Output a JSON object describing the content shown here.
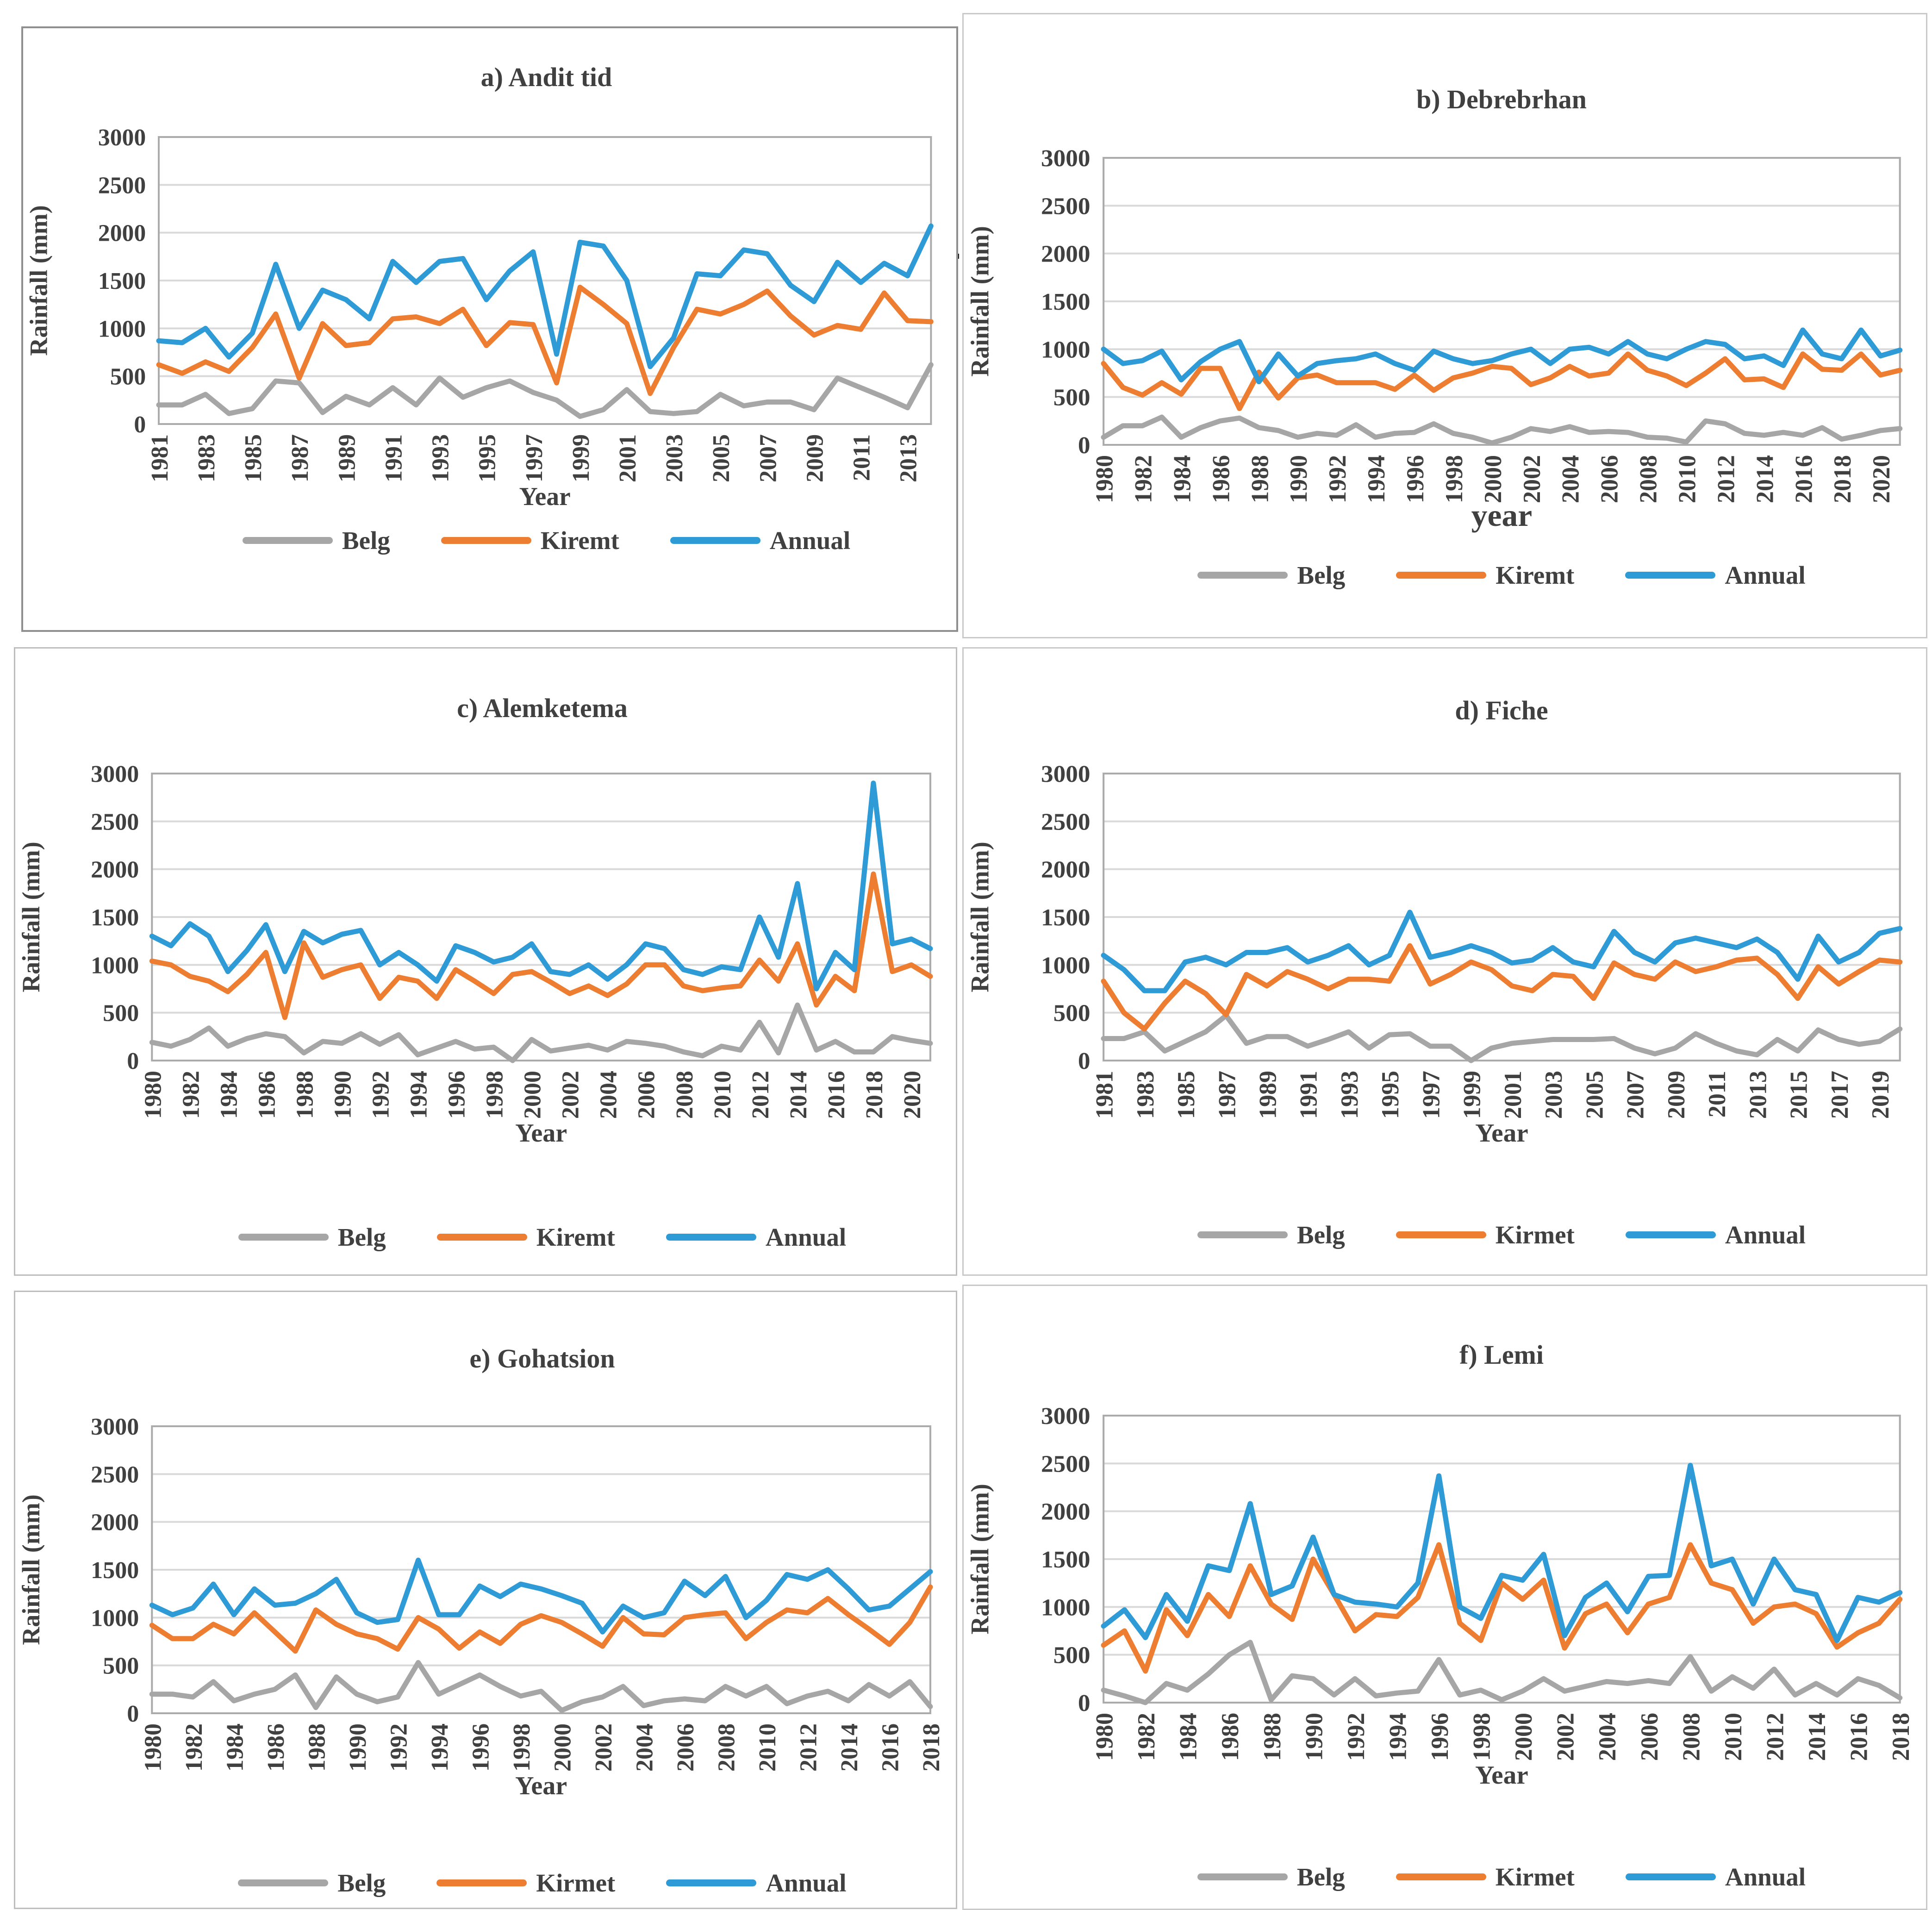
{
  "figure": {
    "background": "#ffffff",
    "stray_mark": "-",
    "text_color": "#404040",
    "gridline_color": "#d9d9d9",
    "plot_border_color": "#ababab"
  },
  "chart_data": [
    {
      "id": "a",
      "type": "line",
      "title": "a) Andit tid",
      "ylabel": "Rainfall (mm)",
      "xlabel": "Year",
      "xlabel_size": 56,
      "y_axis": {
        "min": 0,
        "max": 3000,
        "step": 500
      },
      "grid": true,
      "legend_position": "bottom",
      "years": [
        1981,
        1982,
        1983,
        1984,
        1985,
        1986,
        1987,
        1988,
        1989,
        1990,
        1991,
        1992,
        1993,
        1994,
        1995,
        1996,
        1997,
        1998,
        1999,
        2000,
        2001,
        2002,
        2003,
        2004,
        2005,
        2006,
        2007,
        2008,
        2009,
        2010,
        2011,
        2012,
        2013,
        2014
      ],
      "series": [
        {
          "name": "Belg",
          "color": "#a6a6a6",
          "values": [
            200,
            200,
            310,
            110,
            160,
            450,
            430,
            120,
            290,
            200,
            380,
            200,
            480,
            280,
            380,
            450,
            330,
            250,
            80,
            150,
            360,
            130,
            110,
            130,
            310,
            190,
            230,
            230,
            150,
            480,
            380,
            280,
            170,
            620
          ]
        },
        {
          "name": "Kiremt",
          "color": "#ed7d31",
          "values": [
            620,
            530,
            650,
            550,
            800,
            1150,
            480,
            1050,
            820,
            850,
            1100,
            1120,
            1050,
            1200,
            820,
            1060,
            1040,
            430,
            1430,
            1250,
            1050,
            320,
            800,
            1200,
            1150,
            1250,
            1390,
            1130,
            930,
            1030,
            990,
            1370,
            1080,
            1070
          ]
        },
        {
          "name": "Annual",
          "color": "#2e9bd6",
          "values": [
            870,
            850,
            1000,
            700,
            950,
            1670,
            1000,
            1400,
            1300,
            1100,
            1700,
            1480,
            1700,
            1730,
            1300,
            1600,
            1800,
            730,
            1900,
            1860,
            1500,
            600,
            900,
            1570,
            1550,
            1820,
            1780,
            1450,
            1280,
            1690,
            1480,
            1680,
            1550,
            2070
          ]
        }
      ]
    },
    {
      "id": "b",
      "type": "line",
      "title": "b) Debrebrhan",
      "ylabel": "Rainfall (mm)",
      "xlabel": "year",
      "xlabel_size": 68,
      "y_axis": {
        "min": 0,
        "max": 3000,
        "step": 500
      },
      "grid": true,
      "legend_position": "bottom",
      "years": [
        1980,
        1981,
        1982,
        1983,
        1984,
        1985,
        1986,
        1987,
        1988,
        1989,
        1990,
        1991,
        1992,
        1993,
        1994,
        1995,
        1996,
        1997,
        1998,
        1999,
        2000,
        2001,
        2002,
        2003,
        2004,
        2005,
        2006,
        2007,
        2008,
        2009,
        2010,
        2011,
        2012,
        2013,
        2014,
        2015,
        2016,
        2017,
        2018,
        2019,
        2020,
        2021
      ],
      "series": [
        {
          "name": "Belg",
          "color": "#a6a6a6",
          "values": [
            80,
            200,
            200,
            290,
            80,
            180,
            250,
            280,
            180,
            150,
            80,
            120,
            100,
            210,
            80,
            120,
            130,
            220,
            120,
            80,
            20,
            80,
            170,
            140,
            190,
            130,
            140,
            130,
            80,
            70,
            30,
            250,
            220,
            120,
            100,
            130,
            100,
            180,
            60,
            100,
            150,
            170
          ]
        },
        {
          "name": "Kiremt",
          "color": "#ed7d31",
          "values": [
            850,
            600,
            520,
            650,
            530,
            800,
            800,
            380,
            760,
            490,
            700,
            730,
            650,
            650,
            650,
            580,
            730,
            570,
            700,
            750,
            820,
            800,
            630,
            700,
            820,
            720,
            750,
            950,
            780,
            720,
            620,
            750,
            900,
            680,
            690,
            600,
            950,
            790,
            780,
            950,
            730,
            780
          ]
        },
        {
          "name": "Annual",
          "color": "#2e9bd6",
          "values": [
            1000,
            850,
            880,
            980,
            680,
            870,
            1000,
            1080,
            660,
            950,
            720,
            850,
            880,
            900,
            950,
            850,
            780,
            980,
            900,
            850,
            880,
            950,
            1000,
            850,
            1000,
            1020,
            950,
            1080,
            950,
            900,
            1000,
            1080,
            1050,
            900,
            930,
            830,
            1200,
            950,
            900,
            1200,
            930,
            990
          ]
        }
      ]
    },
    {
      "id": "c",
      "type": "line",
      "title": "c) Alemketema",
      "ylabel": "Rainfall (mm)",
      "xlabel": "Year",
      "xlabel_size": 56,
      "y_axis": {
        "min": 0,
        "max": 3000,
        "step": 500
      },
      "grid": true,
      "legend_position": "bottom",
      "years": [
        1980,
        1981,
        1982,
        1983,
        1984,
        1985,
        1986,
        1987,
        1988,
        1989,
        1990,
        1991,
        1992,
        1993,
        1994,
        1995,
        1996,
        1997,
        1998,
        1999,
        2000,
        2001,
        2002,
        2003,
        2004,
        2005,
        2006,
        2007,
        2008,
        2009,
        2010,
        2011,
        2012,
        2013,
        2014,
        2015,
        2016,
        2017,
        2018,
        2019,
        2020,
        2021
      ],
      "series": [
        {
          "name": "Belg",
          "color": "#a6a6a6",
          "values": [
            190,
            150,
            220,
            340,
            150,
            230,
            280,
            250,
            80,
            200,
            180,
            280,
            170,
            270,
            60,
            130,
            200,
            120,
            140,
            0,
            220,
            100,
            130,
            160,
            110,
            200,
            180,
            150,
            90,
            50,
            150,
            110,
            400,
            80,
            580,
            110,
            200,
            90,
            90,
            250,
            210,
            180
          ]
        },
        {
          "name": "Kiremt",
          "color": "#ed7d31",
          "values": [
            1040,
            1000,
            880,
            830,
            720,
            900,
            1130,
            450,
            1230,
            870,
            950,
            1000,
            650,
            870,
            830,
            650,
            950,
            830,
            700,
            900,
            930,
            820,
            700,
            780,
            680,
            800,
            1000,
            1000,
            780,
            730,
            760,
            780,
            1050,
            830,
            1220,
            580,
            880,
            730,
            1950,
            930,
            1000,
            880
          ]
        },
        {
          "name": "Annual",
          "color": "#2e9bd6",
          "values": [
            1300,
            1200,
            1430,
            1300,
            930,
            1150,
            1420,
            930,
            1350,
            1230,
            1320,
            1360,
            1000,
            1130,
            1000,
            830,
            1200,
            1130,
            1030,
            1080,
            1220,
            930,
            900,
            1000,
            850,
            1000,
            1220,
            1170,
            950,
            900,
            980,
            950,
            1500,
            1080,
            1850,
            750,
            1130,
            950,
            2900,
            1220,
            1270,
            1170
          ]
        }
      ]
    },
    {
      "id": "d",
      "type": "line",
      "title": "d) Fiche",
      "ylabel": "Rainfall (mm)",
      "xlabel": "Year",
      "xlabel_size": 56,
      "y_axis": {
        "min": 0,
        "max": 3000,
        "step": 500
      },
      "grid": true,
      "legend_position": "bottom",
      "years": [
        1981,
        1982,
        1983,
        1984,
        1985,
        1986,
        1987,
        1988,
        1989,
        1990,
        1991,
        1992,
        1993,
        1994,
        1995,
        1996,
        1997,
        1998,
        1999,
        2000,
        2001,
        2002,
        2003,
        2004,
        2005,
        2006,
        2007,
        2008,
        2009,
        2010,
        2011,
        2012,
        2013,
        2014,
        2015,
        2016,
        2017,
        2018,
        2019,
        2020
      ],
      "series": [
        {
          "name": "Belg",
          "color": "#a6a6a6",
          "values": [
            230,
            230,
            300,
            100,
            200,
            300,
            470,
            180,
            250,
            250,
            150,
            220,
            300,
            130,
            270,
            280,
            150,
            150,
            0,
            130,
            180,
            200,
            220,
            220,
            220,
            230,
            130,
            70,
            130,
            280,
            180,
            100,
            60,
            220,
            100,
            320,
            220,
            170,
            200,
            330
          ]
        },
        {
          "name": "Kirmet",
          "color": "#ed7d31",
          "values": [
            830,
            500,
            330,
            600,
            830,
            700,
            480,
            900,
            780,
            930,
            850,
            750,
            850,
            850,
            830,
            1200,
            800,
            900,
            1030,
            950,
            780,
            730,
            900,
            880,
            650,
            1020,
            900,
            850,
            1030,
            930,
            980,
            1050,
            1070,
            900,
            650,
            980,
            800,
            930,
            1050,
            1030
          ]
        },
        {
          "name": "Annual",
          "color": "#2e9bd6",
          "values": [
            1100,
            950,
            730,
            730,
            1030,
            1080,
            1000,
            1130,
            1130,
            1180,
            1030,
            1100,
            1200,
            1000,
            1100,
            1550,
            1080,
            1130,
            1200,
            1130,
            1020,
            1050,
            1180,
            1030,
            980,
            1350,
            1130,
            1030,
            1230,
            1280,
            1230,
            1180,
            1270,
            1130,
            850,
            1300,
            1030,
            1130,
            1330,
            1380
          ]
        }
      ]
    },
    {
      "id": "e",
      "type": "line",
      "title": "e) Gohatsion",
      "ylabel": "Rainfall (mm)",
      "xlabel": "Year",
      "xlabel_size": 56,
      "y_axis": {
        "min": 0,
        "max": 3000,
        "step": 500
      },
      "grid": true,
      "legend_position": "bottom",
      "years": [
        1980,
        1981,
        1982,
        1983,
        1984,
        1985,
        1986,
        1987,
        1988,
        1989,
        1990,
        1991,
        1992,
        1993,
        1994,
        1995,
        1996,
        1997,
        1998,
        1999,
        2000,
        2001,
        2002,
        2003,
        2004,
        2005,
        2006,
        2007,
        2008,
        2009,
        2010,
        2011,
        2012,
        2013,
        2014,
        2015,
        2016,
        2017,
        2018
      ],
      "series": [
        {
          "name": "Belg",
          "color": "#a6a6a6",
          "values": [
            200,
            200,
            170,
            330,
            130,
            200,
            250,
            400,
            60,
            380,
            200,
            120,
            170,
            530,
            200,
            300,
            400,
            280,
            180,
            230,
            30,
            120,
            170,
            280,
            80,
            130,
            150,
            130,
            280,
            180,
            280,
            100,
            180,
            230,
            130,
            300,
            180,
            330,
            70
          ]
        },
        {
          "name": "Kirmet",
          "color": "#ed7d31",
          "values": [
            920,
            780,
            780,
            930,
            830,
            1050,
            850,
            650,
            1080,
            930,
            830,
            780,
            670,
            1000,
            880,
            680,
            850,
            730,
            930,
            1020,
            950,
            830,
            700,
            1000,
            830,
            820,
            1000,
            1030,
            1050,
            780,
            950,
            1080,
            1050,
            1200,
            1030,
            880,
            720,
            950,
            1320
          ]
        },
        {
          "name": "Annual",
          "color": "#2e9bd6",
          "values": [
            1130,
            1030,
            1100,
            1350,
            1030,
            1300,
            1130,
            1150,
            1250,
            1400,
            1050,
            950,
            980,
            1600,
            1030,
            1030,
            1330,
            1220,
            1350,
            1300,
            1230,
            1150,
            850,
            1120,
            1000,
            1050,
            1380,
            1230,
            1430,
            1000,
            1180,
            1450,
            1400,
            1500,
            1300,
            1080,
            1120,
            1300,
            1480
          ]
        }
      ]
    },
    {
      "id": "f",
      "type": "line",
      "title": "f) Lemi",
      "ylabel": "Rainfall (mm)",
      "xlabel": "Year",
      "xlabel_size": 56,
      "y_axis": {
        "min": 0,
        "max": 3000,
        "step": 500
      },
      "grid": true,
      "legend_position": "bottom",
      "years": [
        1980,
        1981,
        1982,
        1983,
        1984,
        1985,
        1986,
        1987,
        1988,
        1989,
        1990,
        1991,
        1992,
        1993,
        1994,
        1995,
        1996,
        1997,
        1998,
        1999,
        2000,
        2001,
        2002,
        2003,
        2004,
        2005,
        2006,
        2007,
        2008,
        2009,
        2010,
        2011,
        2012,
        2013,
        2014,
        2015,
        2016,
        2017,
        2018
      ],
      "series": [
        {
          "name": "Belg",
          "color": "#a6a6a6",
          "values": [
            130,
            70,
            0,
            200,
            130,
            300,
            500,
            630,
            30,
            280,
            250,
            80,
            250,
            70,
            100,
            120,
            450,
            80,
            130,
            30,
            120,
            250,
            120,
            170,
            220,
            200,
            230,
            200,
            480,
            120,
            270,
            150,
            350,
            80,
            200,
            80,
            250,
            180,
            50
          ]
        },
        {
          "name": "Kirmet",
          "color": "#ed7d31",
          "values": [
            600,
            750,
            330,
            970,
            700,
            1130,
            900,
            1430,
            1030,
            870,
            1500,
            1130,
            750,
            920,
            900,
            1100,
            1650,
            830,
            650,
            1250,
            1080,
            1280,
            570,
            930,
            1030,
            730,
            1030,
            1100,
            1650,
            1250,
            1180,
            830,
            1000,
            1030,
            930,
            580,
            730,
            830,
            1080
          ]
        },
        {
          "name": "Annual",
          "color": "#2e9bd6",
          "values": [
            800,
            970,
            680,
            1130,
            850,
            1430,
            1380,
            2080,
            1130,
            1220,
            1730,
            1130,
            1050,
            1030,
            1000,
            1250,
            2370,
            1000,
            880,
            1330,
            1280,
            1550,
            700,
            1100,
            1250,
            950,
            1320,
            1330,
            2480,
            1430,
            1500,
            1030,
            1500,
            1180,
            1130,
            650,
            1100,
            1050,
            1150
          ]
        }
      ]
    }
  ]
}
